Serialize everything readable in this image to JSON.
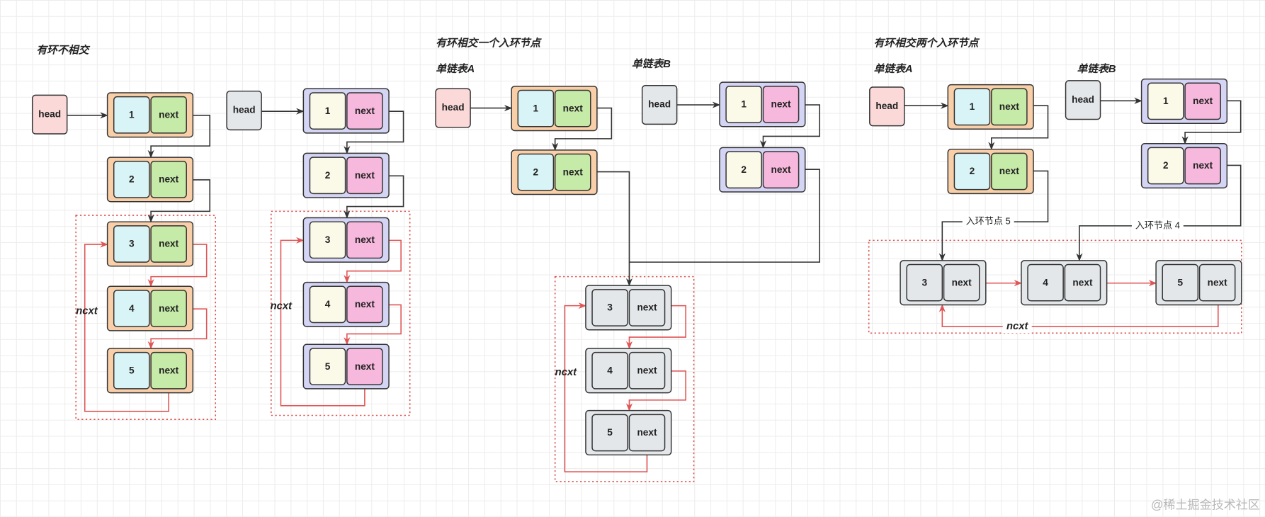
{
  "colors": {
    "black_arrow": "#333333",
    "red_arrow": "#e05555",
    "loop_box": "#d9534f",
    "orange_node": {
      "outer": "#f8cfa8",
      "value": "#d9f4f6",
      "next": "#c6eaa8"
    },
    "purple_node": {
      "outer": "#d4d4f4",
      "value": "#fbf9e8",
      "next": "#f6b8dc"
    },
    "gray_node": {
      "outer": "#e4e7ea",
      "value": "#e4e7ea",
      "next": "#e4e7ea"
    },
    "head_pink": "#fbd9d9",
    "head_gray": "#e4e7ea"
  },
  "next_label": "next",
  "head_label": "head",
  "diagrams": [
    {
      "title": "有环不相交",
      "loop_label": "ncxt",
      "list": {
        "nodes": [
          "1",
          "2",
          "3",
          "4",
          "5"
        ]
      }
    },
    {
      "title": "",
      "loop_label": "ncxt",
      "list": {
        "nodes": [
          "1",
          "2",
          "3",
          "4",
          "5"
        ]
      }
    },
    {
      "title": "有环相交一个入环节点",
      "loop_label": "ncxt",
      "list_a": {
        "label": "单链表A",
        "nodes": [
          "1",
          "2"
        ]
      },
      "list_b": {
        "label": "单链表B",
        "nodes": [
          "1",
          "2"
        ]
      },
      "loop_nodes": [
        "3",
        "4",
        "5"
      ]
    },
    {
      "title": "有环相交两个入环节点",
      "loop_label": "ncxt",
      "list_a": {
        "label": "单链表A",
        "nodes": [
          "1",
          "2"
        ],
        "entry_label": "入环节点 5"
      },
      "list_b": {
        "label": "单链表B",
        "nodes": [
          "1",
          "2"
        ],
        "entry_label": "入环节点 4"
      },
      "loop_nodes": [
        "3",
        "4",
        "5"
      ]
    }
  ],
  "watermark": "@稀土掘金技术社区"
}
